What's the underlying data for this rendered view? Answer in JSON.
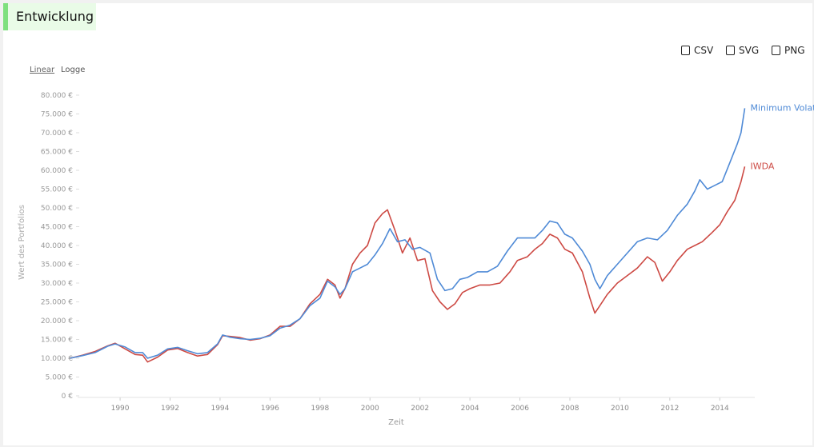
{
  "header": {
    "title": "Entwicklung"
  },
  "export": {
    "csv": "CSV",
    "svg": "SVG",
    "png": "PNG"
  },
  "scale": {
    "linear": "Linear",
    "log": "Logge"
  },
  "colors": {
    "minvol": "#4f8ad6",
    "iwda": "#cd4a44",
    "accent": "#7fe07f"
  },
  "chart_data": {
    "type": "line",
    "xlabel": "Zeit",
    "ylabel": "Wert des Portfolios",
    "xlim": [
      1988.3,
      2015.4
    ],
    "ylim": [
      0,
      80000
    ],
    "yticks": [
      {
        "value": 0,
        "label": "0 €"
      },
      {
        "value": 5000,
        "label": "5.000 €"
      },
      {
        "value": 10000,
        "label": "10.000 €"
      },
      {
        "value": 15000,
        "label": "15.000 €"
      },
      {
        "value": 20000,
        "label": "20.000 €"
      },
      {
        "value": 25000,
        "label": "25.000 €"
      },
      {
        "value": 30000,
        "label": "30.000 €"
      },
      {
        "value": 35000,
        "label": "35.000 €"
      },
      {
        "value": 40000,
        "label": "40.000 €"
      },
      {
        "value": 45000,
        "label": "45.000 €"
      },
      {
        "value": 50000,
        "label": "50.000 €"
      },
      {
        "value": 55000,
        "label": "55.000 €"
      },
      {
        "value": 60000,
        "label": "60.000 €"
      },
      {
        "value": 65000,
        "label": "65.000 €"
      },
      {
        "value": 70000,
        "label": "70.000 €"
      },
      {
        "value": 75000,
        "label": "75.000 €"
      },
      {
        "value": 80000,
        "label": "80.000 €"
      }
    ],
    "xticks": [
      {
        "value": 1990,
        "label": "1990"
      },
      {
        "value": 1992,
        "label": "1992"
      },
      {
        "value": 1994,
        "label": "1994"
      },
      {
        "value": 1996,
        "label": "1996"
      },
      {
        "value": 1998,
        "label": "1998"
      },
      {
        "value": 2000,
        "label": "2000"
      },
      {
        "value": 2002,
        "label": "2002"
      },
      {
        "value": 2004,
        "label": "2004"
      },
      {
        "value": 2006,
        "label": "2006"
      },
      {
        "value": 2008,
        "label": "2008"
      },
      {
        "value": 2010,
        "label": "2010"
      },
      {
        "value": 2012,
        "label": "2012"
      },
      {
        "value": 2014,
        "label": "2014"
      }
    ],
    "series": [
      {
        "name": "Minimum Volatility",
        "color": "#4f8ad6",
        "points": [
          [
            1988.0,
            10000
          ],
          [
            1988.5,
            10700
          ],
          [
            1989.0,
            11500
          ],
          [
            1989.5,
            13200
          ],
          [
            1989.8,
            13800
          ],
          [
            1990.2,
            13000
          ],
          [
            1990.6,
            11500
          ],
          [
            1990.9,
            11500
          ],
          [
            1991.1,
            10000
          ],
          [
            1991.5,
            10800
          ],
          [
            1991.9,
            12500
          ],
          [
            1992.3,
            12900
          ],
          [
            1992.7,
            12000
          ],
          [
            1993.1,
            11200
          ],
          [
            1993.5,
            11500
          ],
          [
            1993.9,
            13800
          ],
          [
            1994.1,
            16200
          ],
          [
            1994.4,
            15600
          ],
          [
            1994.8,
            15200
          ],
          [
            1995.2,
            15000
          ],
          [
            1995.6,
            15300
          ],
          [
            1996.0,
            16000
          ],
          [
            1996.4,
            18000
          ],
          [
            1996.8,
            18800
          ],
          [
            1997.2,
            20500
          ],
          [
            1997.6,
            24000
          ],
          [
            1998.0,
            26000
          ],
          [
            1998.3,
            30500
          ],
          [
            1998.6,
            29000
          ],
          [
            1998.8,
            27000
          ],
          [
            1999.0,
            28500
          ],
          [
            1999.3,
            33000
          ],
          [
            1999.6,
            34000
          ],
          [
            1999.9,
            35000
          ],
          [
            2000.2,
            37500
          ],
          [
            2000.5,
            40500
          ],
          [
            2000.8,
            44500
          ],
          [
            2001.1,
            41000
          ],
          [
            2001.4,
            41500
          ],
          [
            2001.7,
            39000
          ],
          [
            2002.0,
            39500
          ],
          [
            2002.4,
            38000
          ],
          [
            2002.7,
            31000
          ],
          [
            2003.0,
            28000
          ],
          [
            2003.3,
            28500
          ],
          [
            2003.6,
            31000
          ],
          [
            2003.9,
            31500
          ],
          [
            2004.3,
            33000
          ],
          [
            2004.7,
            33000
          ],
          [
            2005.1,
            34500
          ],
          [
            2005.5,
            38500
          ],
          [
            2005.9,
            42000
          ],
          [
            2006.3,
            42000
          ],
          [
            2006.6,
            42000
          ],
          [
            2006.9,
            44000
          ],
          [
            2007.2,
            46500
          ],
          [
            2007.5,
            46000
          ],
          [
            2007.8,
            43000
          ],
          [
            2008.1,
            42000
          ],
          [
            2008.5,
            38500
          ],
          [
            2008.8,
            35000
          ],
          [
            2009.0,
            31000
          ],
          [
            2009.2,
            28500
          ],
          [
            2009.5,
            32000
          ],
          [
            2009.9,
            35000
          ],
          [
            2010.3,
            38000
          ],
          [
            2010.7,
            41000
          ],
          [
            2011.1,
            42000
          ],
          [
            2011.5,
            41500
          ],
          [
            2011.9,
            44000
          ],
          [
            2012.3,
            48000
          ],
          [
            2012.7,
            51000
          ],
          [
            2013.0,
            54500
          ],
          [
            2013.2,
            57500
          ],
          [
            2013.5,
            55000
          ],
          [
            2013.8,
            56000
          ],
          [
            2014.1,
            57000
          ],
          [
            2014.4,
            62000
          ],
          [
            2014.7,
            67000
          ],
          [
            2014.85,
            70000
          ],
          [
            2015.0,
            76500
          ]
        ]
      },
      {
        "name": "IWDA",
        "color": "#cd4a44",
        "points": [
          [
            1988.0,
            10000
          ],
          [
            1988.5,
            10800
          ],
          [
            1989.0,
            11800
          ],
          [
            1989.5,
            13300
          ],
          [
            1989.8,
            14000
          ],
          [
            1990.2,
            12500
          ],
          [
            1990.6,
            11000
          ],
          [
            1990.9,
            10800
          ],
          [
            1991.1,
            9000
          ],
          [
            1991.5,
            10300
          ],
          [
            1991.9,
            12200
          ],
          [
            1992.3,
            12600
          ],
          [
            1992.7,
            11500
          ],
          [
            1993.1,
            10600
          ],
          [
            1993.5,
            11000
          ],
          [
            1993.9,
            13600
          ],
          [
            1994.1,
            16000
          ],
          [
            1994.4,
            15800
          ],
          [
            1994.8,
            15500
          ],
          [
            1995.2,
            14800
          ],
          [
            1995.6,
            15200
          ],
          [
            1996.0,
            16200
          ],
          [
            1996.4,
            18500
          ],
          [
            1996.8,
            18500
          ],
          [
            1997.2,
            20500
          ],
          [
            1997.6,
            24500
          ],
          [
            1998.0,
            27000
          ],
          [
            1998.3,
            31000
          ],
          [
            1998.6,
            29500
          ],
          [
            1998.8,
            26000
          ],
          [
            1999.0,
            28500
          ],
          [
            1999.3,
            35000
          ],
          [
            1999.6,
            38000
          ],
          [
            1999.9,
            40000
          ],
          [
            2000.2,
            46000
          ],
          [
            2000.5,
            48500
          ],
          [
            2000.7,
            49500
          ],
          [
            2001.0,
            44000
          ],
          [
            2001.3,
            38000
          ],
          [
            2001.6,
            42000
          ],
          [
            2001.9,
            36000
          ],
          [
            2002.2,
            36500
          ],
          [
            2002.5,
            28000
          ],
          [
            2002.8,
            25000
          ],
          [
            2003.1,
            23000
          ],
          [
            2003.4,
            24500
          ],
          [
            2003.7,
            27500
          ],
          [
            2004.0,
            28500
          ],
          [
            2004.4,
            29500
          ],
          [
            2004.8,
            29500
          ],
          [
            2005.2,
            30000
          ],
          [
            2005.6,
            33000
          ],
          [
            2005.9,
            36000
          ],
          [
            2006.3,
            37000
          ],
          [
            2006.6,
            39000
          ],
          [
            2006.9,
            40500
          ],
          [
            2007.2,
            43000
          ],
          [
            2007.5,
            42000
          ],
          [
            2007.8,
            39000
          ],
          [
            2008.1,
            38000
          ],
          [
            2008.5,
            33000
          ],
          [
            2008.8,
            26000
          ],
          [
            2009.0,
            22000
          ],
          [
            2009.2,
            24000
          ],
          [
            2009.5,
            27000
          ],
          [
            2009.9,
            30000
          ],
          [
            2010.3,
            32000
          ],
          [
            2010.7,
            34000
          ],
          [
            2011.1,
            37000
          ],
          [
            2011.4,
            35500
          ],
          [
            2011.7,
            30500
          ],
          [
            2012.0,
            33000
          ],
          [
            2012.3,
            36000
          ],
          [
            2012.7,
            39000
          ],
          [
            2013.0,
            40000
          ],
          [
            2013.3,
            41000
          ],
          [
            2013.7,
            43500
          ],
          [
            2014.0,
            45500
          ],
          [
            2014.3,
            49000
          ],
          [
            2014.6,
            52000
          ],
          [
            2014.85,
            57000
          ],
          [
            2015.0,
            61000
          ]
        ]
      }
    ]
  }
}
